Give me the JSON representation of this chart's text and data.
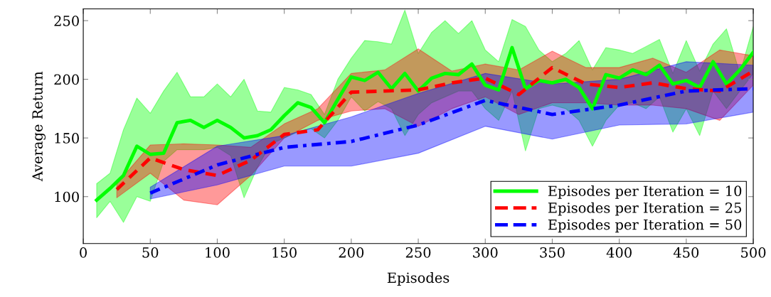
{
  "chart_data": {
    "type": "line",
    "xlabel": "Episodes",
    "ylabel": "Average Return",
    "xlim": [
      0,
      500
    ],
    "ylim": [
      60,
      260
    ],
    "xticks": [
      0,
      50,
      100,
      150,
      200,
      250,
      300,
      350,
      400,
      450,
      500
    ],
    "yticks": [
      100,
      150,
      200,
      250
    ],
    "grid": false,
    "legend": "bottom right",
    "marker": "none",
    "series": [
      {
        "name": "Episodes per Iteration = 10",
        "color": "#00ff00",
        "line_style": "solid",
        "x": [
          10,
          20,
          30,
          40,
          50,
          60,
          70,
          80,
          90,
          100,
          110,
          120,
          130,
          140,
          150,
          160,
          170,
          180,
          190,
          200,
          210,
          220,
          230,
          240,
          250,
          260,
          270,
          280,
          290,
          300,
          310,
          320,
          330,
          340,
          350,
          360,
          370,
          380,
          390,
          400,
          410,
          420,
          430,
          440,
          450,
          460,
          470,
          480,
          490,
          500
        ],
        "values": [
          97,
          107,
          118,
          143,
          136,
          137,
          163,
          165,
          159,
          165,
          159,
          150,
          152,
          157,
          169,
          180,
          176,
          163,
          183,
          202,
          199,
          206,
          192,
          205,
          190,
          201,
          205,
          204,
          213,
          195,
          191,
          227,
          192,
          199,
          197,
          200,
          193,
          175,
          204,
          201,
          208,
          204,
          212,
          196,
          199,
          193,
          215,
          196,
          208,
          223
        ],
        "lower": [
          82,
          96,
          78,
          100,
          96,
          130,
          140,
          140,
          140,
          142,
          135,
          99,
          125,
          145,
          150,
          155,
          158,
          150,
          165,
          185,
          173,
          181,
          175,
          152,
          170,
          180,
          185,
          190,
          190,
          175,
          165,
          190,
          139,
          175,
          178,
          175,
          165,
          143,
          165,
          178,
          180,
          175,
          185,
          155,
          175,
          152,
          190,
          175,
          190,
          205
        ],
        "upper": [
          111,
          120,
          157,
          184,
          171,
          190,
          206,
          185,
          185,
          196,
          185,
          200,
          173,
          172,
          193,
          191,
          187,
          170,
          200,
          218,
          233,
          232,
          230,
          259,
          222,
          240,
          250,
          239,
          250,
          225,
          215,
          251,
          245,
          225,
          215,
          222,
          233,
          208,
          227,
          225,
          222,
          228,
          234,
          205,
          233,
          207,
          230,
          243,
          205,
          245
        ]
      },
      {
        "name": "Episodes per Iteration = 25",
        "color": "#ff0000",
        "line_style": "dashed",
        "x": [
          25,
          50,
          75,
          100,
          125,
          150,
          175,
          200,
          225,
          250,
          275,
          300,
          325,
          350,
          375,
          400,
          425,
          450,
          475,
          500
        ],
        "values": [
          106,
          133,
          123,
          118,
          131,
          153,
          157,
          189,
          190,
          191,
          197,
          201,
          187,
          210,
          196,
          193,
          197,
          192,
          190,
          207
        ],
        "lower": [
          99,
          120,
          97,
          93,
          118,
          150,
          165,
          173,
          175,
          160,
          175,
          185,
          170,
          180,
          180,
          178,
          178,
          175,
          165,
          195
        ],
        "upper": [
          111,
          144,
          145,
          144,
          142,
          162,
          175,
          205,
          208,
          226,
          207,
          213,
          208,
          224,
          210,
          210,
          218,
          206,
          225,
          220
        ]
      },
      {
        "name": "Episodes per Iteration = 50",
        "color": "#0000ff",
        "line_style": "dashdot",
        "x": [
          50,
          100,
          150,
          200,
          250,
          300,
          350,
          400,
          450,
          500
        ],
        "values": [
          103,
          127,
          142,
          147,
          161,
          182,
          170,
          178,
          190,
          192
        ],
        "lower": [
          98,
          110,
          126,
          126,
          137,
          160,
          149,
          161,
          162,
          172
        ],
        "upper": [
          108,
          143,
          152,
          168,
          188,
          205,
          196,
          200,
          215,
          212
        ]
      }
    ]
  }
}
